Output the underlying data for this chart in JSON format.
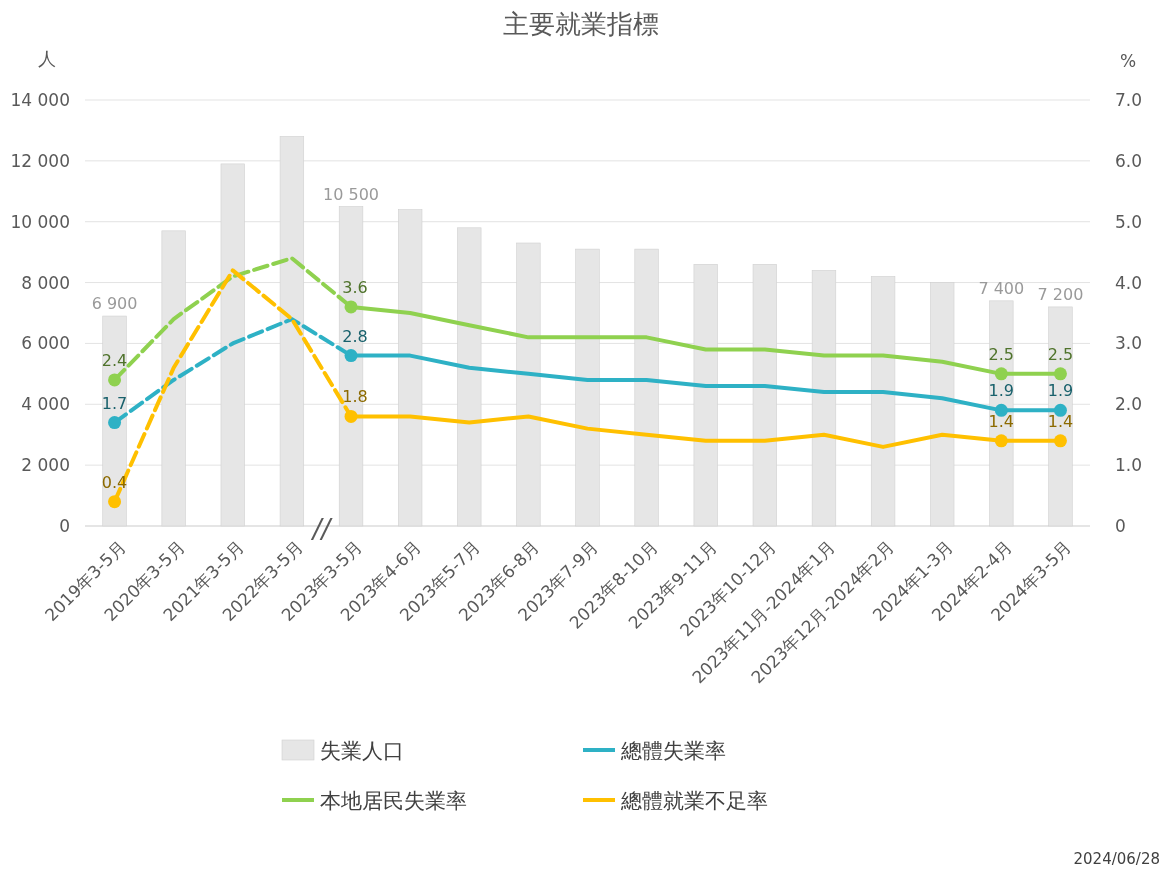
{
  "chart_data": {
    "type": "bar",
    "title": "主要就業指標",
    "ylabel": "人",
    "y2label": "%",
    "categories": [
      "2019年3-5月",
      "2020年3-5月",
      "2021年3-5月",
      "2022年3-5月",
      "2023年3-5月",
      "2023年4-6月",
      "2023年5-7月",
      "2023年6-8月",
      "2023年7-9月",
      "2023年8-10月",
      "2023年9-11月",
      "2023年10-12月",
      "2023年11月-2024年1月",
      "2023年12月-2024年2月",
      "2024年1-3月",
      "2024年2-4月",
      "2024年3-5月"
    ],
    "ylim": [
      0,
      14000
    ],
    "yticks": [
      0,
      {
        "value": 2000,
        "label": "2 000"
      },
      {
        "value": 4000,
        "label": "4 000"
      },
      {
        "value": 6000,
        "label": "6 000"
      },
      {
        "value": 8000,
        "label": "8 000"
      },
      {
        "value": 10000,
        "label": "10 000"
      },
      {
        "value": 12000,
        "label": "12 000"
      },
      {
        "value": 14000,
        "label": "14 000"
      }
    ],
    "y2lim": [
      0,
      7
    ],
    "y2ticks": [
      0,
      {
        "value": 1,
        "label": "1.0"
      },
      {
        "value": 2,
        "label": "2.0"
      },
      {
        "value": 3,
        "label": "3.0"
      },
      {
        "value": 4,
        "label": "4.0"
      },
      {
        "value": 5,
        "label": "5.0"
      },
      {
        "value": 6,
        "label": "6.0"
      },
      {
        "value": 7,
        "label": "7.0"
      }
    ],
    "grid": "y",
    "legend": "bottom",
    "series": [
      {
        "name": "失業人口",
        "color": "#e6e6e6",
        "values": [
          6900,
          9700,
          11900,
          12800,
          10500,
          10400,
          9800,
          9300,
          9100,
          9100,
          8600,
          8600,
          8400,
          8200,
          8000,
          7400,
          7200
        ],
        "value_labels": [
          "6 900",
          null,
          null,
          null,
          "10 500",
          null,
          null,
          null,
          null,
          null,
          null,
          null,
          null,
          null,
          null,
          "7 400",
          "7 200"
        ]
      },
      {
        "name": "總體失業率",
        "type": "line",
        "axis": "y2",
        "color": "#2eb1c5",
        "values": [
          null,
          null,
          null,
          null,
          2.8,
          2.8,
          2.6,
          2.5,
          2.4,
          2.4,
          2.3,
          2.3,
          2.2,
          2.2,
          2.1,
          1.9,
          1.9
        ],
        "value_labels": [
          null,
          null,
          null,
          null,
          "2.8",
          null,
          null,
          null,
          null,
          null,
          null,
          null,
          null,
          null,
          null,
          "1.9",
          "1.9"
        ]
      },
      {
        "type": "line",
        "axis": "y2",
        "color": "#2eb1c5",
        "line_style": "dashed",
        "values": [
          1.7,
          2.4,
          3.0,
          3.4,
          2.8,
          null,
          null,
          null,
          null,
          null,
          null,
          null,
          null,
          null,
          null,
          null,
          null
        ],
        "value_labels": [
          "1.7",
          null,
          null,
          null,
          null,
          null,
          null,
          null,
          null,
          null,
          null,
          null,
          null,
          null,
          null,
          null,
          null
        ]
      },
      {
        "name": "本地居民失業率",
        "type": "line",
        "axis": "y2",
        "color": "#8fd14f",
        "values": [
          null,
          null,
          null,
          null,
          3.6,
          3.5,
          3.3,
          3.1,
          3.1,
          3.1,
          2.9,
          2.9,
          2.8,
          2.8,
          2.7,
          2.5,
          2.5
        ],
        "value_labels": [
          null,
          null,
          null,
          null,
          "3.6",
          null,
          null,
          null,
          null,
          null,
          null,
          null,
          null,
          null,
          null,
          "2.5",
          "2.5"
        ]
      },
      {
        "type": "line",
        "axis": "y2",
        "color": "#8fd14f",
        "line_style": "dashed",
        "values": [
          2.4,
          3.4,
          4.1,
          4.4,
          3.6,
          null,
          null,
          null,
          null,
          null,
          null,
          null,
          null,
          null,
          null,
          null,
          null
        ],
        "value_labels": [
          "2.4",
          null,
          null,
          null,
          null,
          null,
          null,
          null,
          null,
          null,
          null,
          null,
          null,
          null,
          null,
          null,
          null
        ]
      },
      {
        "name": "總體就業不足率",
        "type": "line",
        "axis": "y2",
        "color": "#ffc000",
        "values": [
          null,
          null,
          null,
          null,
          1.8,
          1.8,
          1.7,
          1.8,
          1.6,
          1.5,
          1.4,
          1.4,
          1.5,
          1.3,
          1.5,
          1.4,
          1.4
        ],
        "value_labels": [
          null,
          null,
          null,
          null,
          "1.8",
          null,
          null,
          null,
          null,
          null,
          null,
          null,
          null,
          null,
          null,
          "1.4",
          "1.4"
        ]
      },
      {
        "type": "line",
        "axis": "y2",
        "color": "#ffc000",
        "line_style": "dashed",
        "values": [
          0.4,
          2.6,
          4.2,
          3.4,
          1.8,
          null,
          null,
          null,
          null,
          null,
          null,
          null,
          null,
          null,
          null,
          null,
          null
        ],
        "value_labels": [
          "0.4",
          null,
          null,
          null,
          null,
          null,
          null,
          null,
          null,
          null,
          null,
          null,
          null,
          null,
          null,
          null,
          null
        ]
      }
    ],
    "annotations": [
      "//",
      "2024/06/28"
    ]
  }
}
